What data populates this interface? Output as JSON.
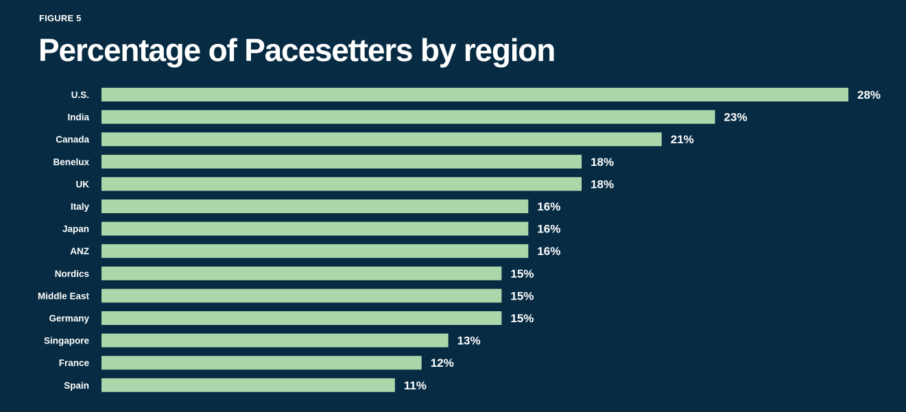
{
  "header": {
    "figure_label": "FIGURE 5",
    "title": "Percentage of Pacesetters by region"
  },
  "colors": {
    "background": "#062b42",
    "bar": "#acd7ab",
    "text": "#ffffff"
  },
  "chart_data": {
    "type": "bar",
    "orientation": "horizontal",
    "title": "Percentage of Pacesetters by region",
    "categories": [
      "U.S.",
      "India",
      "Canada",
      "Benelux",
      "UK",
      "Italy",
      "Japan",
      "ANZ",
      "Nordics",
      "Middle East",
      "Germany",
      "Singapore",
      "France",
      "Spain"
    ],
    "values": [
      28,
      23,
      21,
      18,
      18,
      16,
      16,
      16,
      15,
      15,
      15,
      13,
      12,
      11
    ],
    "value_labels": [
      "28%",
      "23%",
      "21%",
      "18%",
      "18%",
      "16%",
      "16%",
      "16%",
      "15%",
      "15%",
      "15%",
      "13%",
      "12%",
      "11%"
    ],
    "xlim": [
      0,
      28
    ],
    "grid": false,
    "legend": "none"
  }
}
